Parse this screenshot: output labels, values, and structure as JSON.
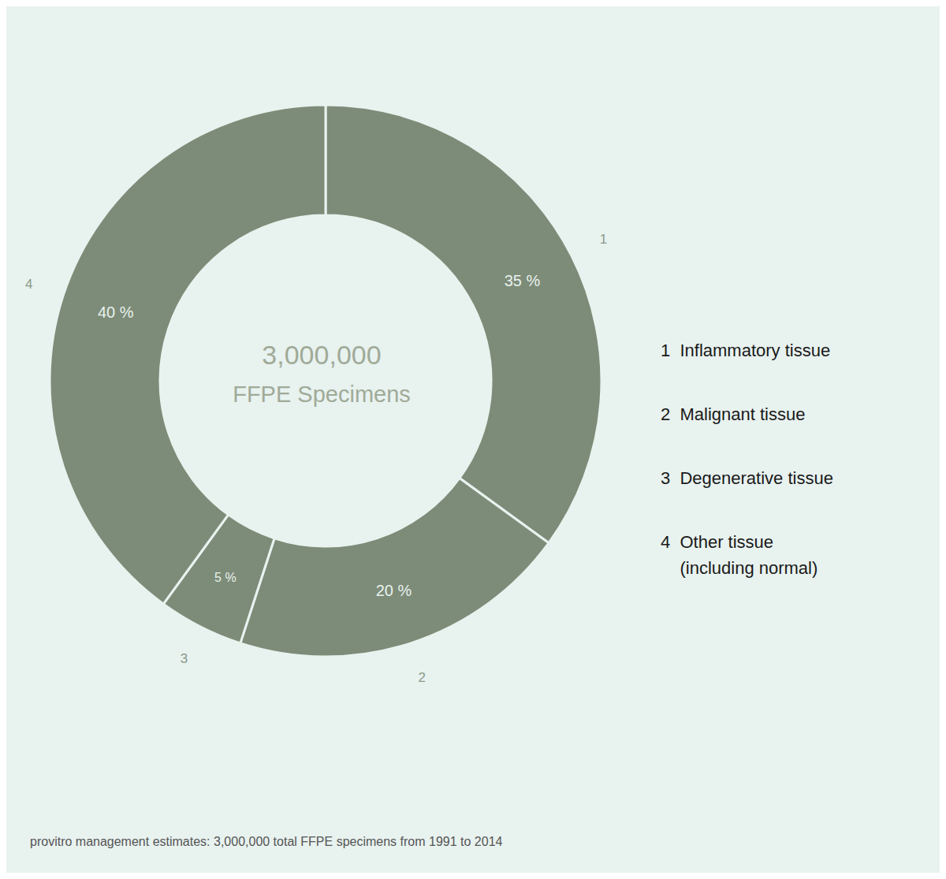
{
  "chart_data": {
    "type": "pie",
    "categories": [
      "1",
      "2",
      "3",
      "4"
    ],
    "values": [
      35,
      20,
      5,
      40
    ],
    "value_labels": [
      "35 %",
      "20 %",
      "5 %",
      "40 %"
    ],
    "data_labels": true,
    "color": "#7d8c78",
    "annotations": [
      "3,000,000",
      "FFPE Specimens",
      "1  Inflammatory tissue",
      "2  Malignant tissue",
      "3  Degenerative tissue",
      "4  Other tissue\n    (including normal)",
      "provitro management estimates: 3,000,000 total FFPE specimens from 1991 to 2014"
    ]
  }
}
